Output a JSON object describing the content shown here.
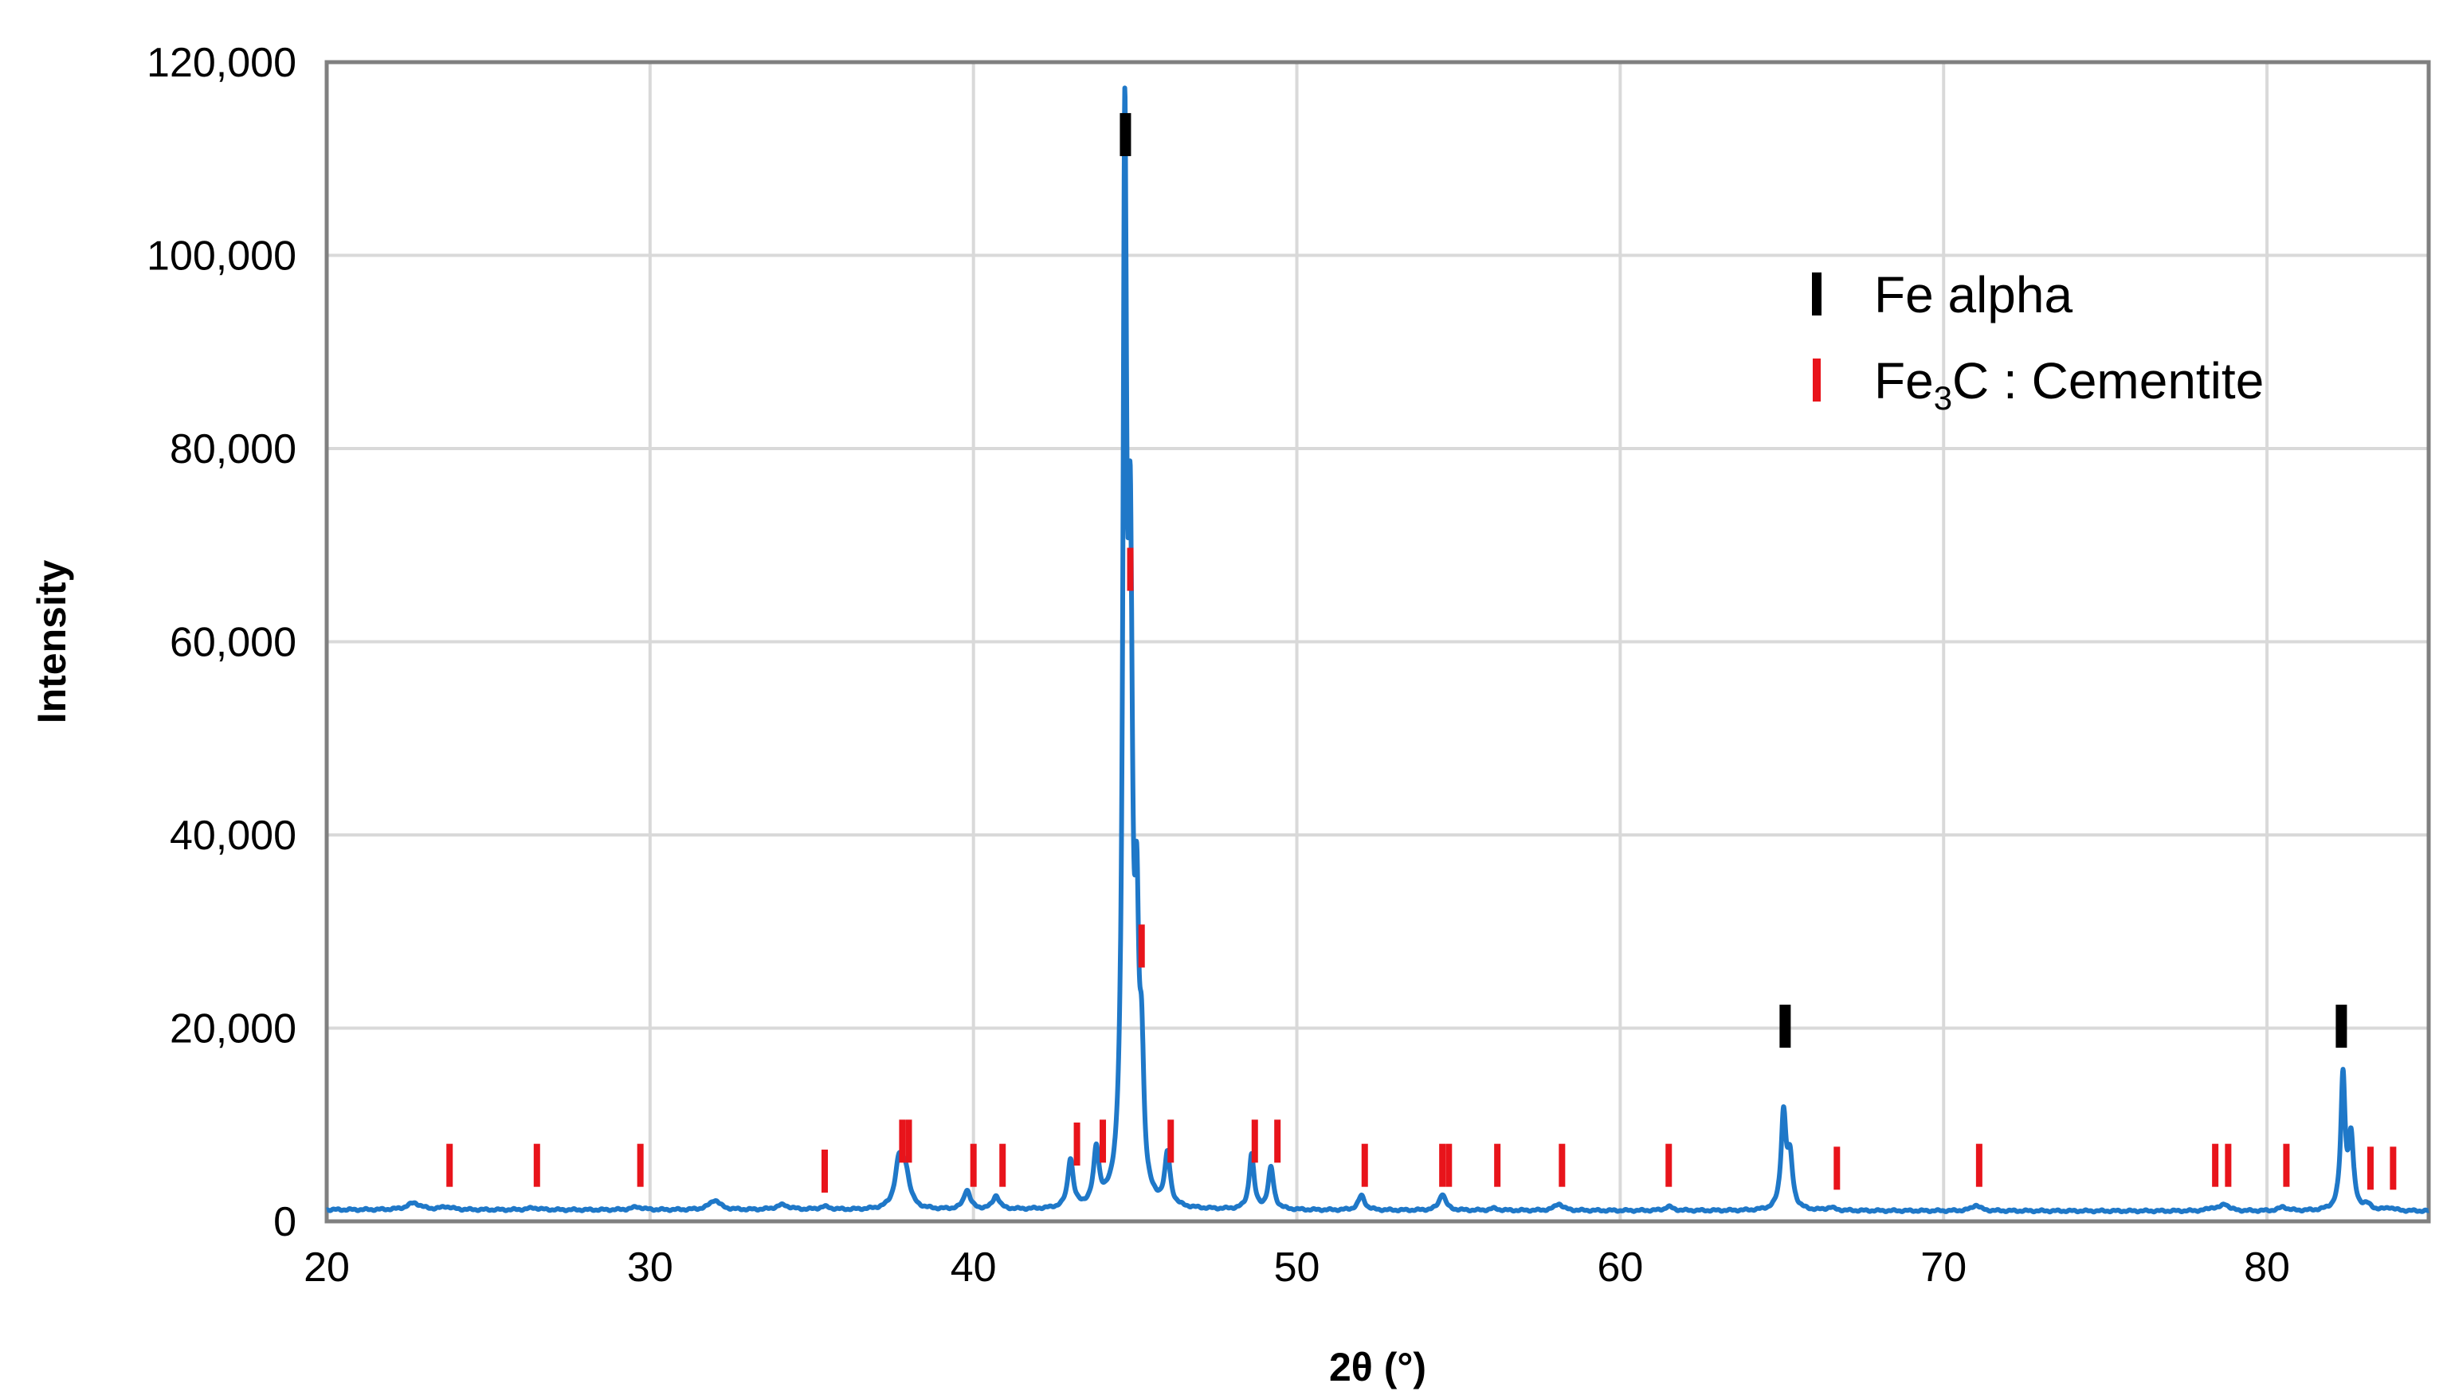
{
  "chart_data": {
    "type": "line",
    "xlabel": "2θ (°)",
    "ylabel": "Intensity",
    "xlim": [
      20,
      85
    ],
    "ylim": [
      0,
      120000
    ],
    "x_ticks": [
      20,
      30,
      40,
      50,
      60,
      70,
      80
    ],
    "y_ticks": [
      0,
      20000,
      40000,
      60000,
      80000,
      100000,
      120000
    ],
    "y_tick_labels": [
      "0",
      "20,000",
      "40,000",
      "60,000",
      "80,000",
      "100,000",
      "120,000"
    ],
    "grid": true,
    "background_level": 1200,
    "series": [
      {
        "color": "#1f78c8",
        "peaks": [
          {
            "x": 22.7,
            "y": 1900,
            "w": 0.25
          },
          {
            "x": 23.7,
            "y": 1500,
            "w": 0.2
          },
          {
            "x": 26.4,
            "y": 1400,
            "w": 0.2
          },
          {
            "x": 29.6,
            "y": 1500,
            "w": 0.2
          },
          {
            "x": 32.0,
            "y": 2200,
            "w": 0.2
          },
          {
            "x": 34.1,
            "y": 1700,
            "w": 0.25
          },
          {
            "x": 35.4,
            "y": 1500,
            "w": 0.2
          },
          {
            "x": 37.7,
            "y": 5800,
            "w": 0.15
          },
          {
            "x": 37.9,
            "y": 4600,
            "w": 0.15
          },
          {
            "x": 39.8,
            "y": 3200,
            "w": 0.12
          },
          {
            "x": 40.7,
            "y": 2600,
            "w": 0.12
          },
          {
            "x": 43.0,
            "y": 6200,
            "w": 0.1
          },
          {
            "x": 43.8,
            "y": 6900,
            "w": 0.1
          },
          {
            "x": 44.68,
            "y": 105500,
            "w": 0.07
          },
          {
            "x": 44.85,
            "y": 60000,
            "w": 0.08
          },
          {
            "x": 45.05,
            "y": 24500,
            "w": 0.07
          },
          {
            "x": 45.2,
            "y": 14000,
            "w": 0.08
          },
          {
            "x": 46.0,
            "y": 6500,
            "w": 0.1
          },
          {
            "x": 48.6,
            "y": 6900,
            "w": 0.09
          },
          {
            "x": 49.2,
            "y": 5500,
            "w": 0.1
          },
          {
            "x": 52.0,
            "y": 2700,
            "w": 0.12
          },
          {
            "x": 54.5,
            "y": 2900,
            "w": 0.12
          },
          {
            "x": 56.1,
            "y": 1400,
            "w": 0.15
          },
          {
            "x": 58.1,
            "y": 1900,
            "w": 0.15
          },
          {
            "x": 61.5,
            "y": 1600,
            "w": 0.15
          },
          {
            "x": 65.05,
            "y": 11000,
            "w": 0.09
          },
          {
            "x": 65.25,
            "y": 6200,
            "w": 0.1
          },
          {
            "x": 66.5,
            "y": 1500,
            "w": 0.15
          },
          {
            "x": 71.0,
            "y": 1800,
            "w": 0.15
          },
          {
            "x": 78.3,
            "y": 1500,
            "w": 0.15
          },
          {
            "x": 78.7,
            "y": 1900,
            "w": 0.15
          },
          {
            "x": 80.5,
            "y": 1600,
            "w": 0.15
          },
          {
            "x": 82.35,
            "y": 15000,
            "w": 0.08
          },
          {
            "x": 82.6,
            "y": 8500,
            "w": 0.09
          },
          {
            "x": 83.1,
            "y": 1700,
            "w": 0.15
          },
          {
            "x": 83.8,
            "y": 1500,
            "w": 0.15
          }
        ]
      }
    ],
    "phase_markers": [
      {
        "name": "Fe alpha",
        "color": "#000000",
        "positions": [
          {
            "x": 44.7,
            "y": 112500
          },
          {
            "x": 65.1,
            "y": 20200
          },
          {
            "x": 82.3,
            "y": 20200
          }
        ]
      },
      {
        "name": "Fe3C : Cementite",
        "color": "#e8141b",
        "positions": [
          {
            "x": 23.8,
            "y": 5800
          },
          {
            "x": 26.5,
            "y": 5800
          },
          {
            "x": 29.7,
            "y": 5800
          },
          {
            "x": 35.4,
            "y": 5200
          },
          {
            "x": 37.8,
            "y": 8300
          },
          {
            "x": 38.0,
            "y": 8300
          },
          {
            "x": 40.0,
            "y": 5800
          },
          {
            "x": 40.9,
            "y": 5800
          },
          {
            "x": 43.2,
            "y": 8000
          },
          {
            "x": 44.0,
            "y": 8300
          },
          {
            "x": 44.85,
            "y": 67500
          },
          {
            "x": 45.2,
            "y": 28500
          },
          {
            "x": 46.1,
            "y": 8300
          },
          {
            "x": 48.7,
            "y": 8300
          },
          {
            "x": 49.4,
            "y": 8300
          },
          {
            "x": 52.1,
            "y": 5800
          },
          {
            "x": 54.5,
            "y": 5800
          },
          {
            "x": 54.7,
            "y": 5800
          },
          {
            "x": 56.2,
            "y": 5800
          },
          {
            "x": 58.2,
            "y": 5800
          },
          {
            "x": 61.5,
            "y": 5800
          },
          {
            "x": 66.7,
            "y": 5500
          },
          {
            "x": 71.1,
            "y": 5800
          },
          {
            "x": 78.4,
            "y": 5800
          },
          {
            "x": 78.8,
            "y": 5800
          },
          {
            "x": 80.6,
            "y": 5800
          },
          {
            "x": 83.2,
            "y": 5500
          },
          {
            "x": 83.9,
            "y": 5500
          }
        ]
      }
    ],
    "legend": {
      "position": "top-right",
      "entries": [
        {
          "label_main": "Fe alpha",
          "label_sub": "",
          "label_rest": "",
          "color": "#000000"
        },
        {
          "label_main": "Fe",
          "label_sub": "3",
          "label_rest": "C : Cementite",
          "color": "#e8141b"
        }
      ]
    }
  }
}
